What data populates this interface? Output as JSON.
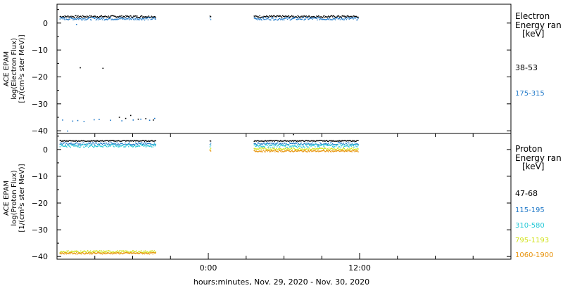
{
  "colors": {
    "black": "#000000",
    "blue": "#1f78c8",
    "cyan": "#24c8d6",
    "yellow": "#d2e21a",
    "orange": "#e8930c"
  },
  "xaxis": {
    "label": "hours:minutes, Nov. 29, 2020 - Nov. 30, 2020",
    "ticks": [
      {
        "hour": 0,
        "label": "0:00"
      },
      {
        "hour": 12,
        "label": "12:00"
      }
    ],
    "range_hours": [
      -12,
      24
    ],
    "minor_ticks_hours": [
      -9,
      -6,
      -3,
      3,
      6,
      9,
      15,
      18,
      21
    ]
  },
  "chart_data": [
    {
      "type": "scatter",
      "ylabel_lines": [
        "ACE EPAM",
        "log(Electron Flux)",
        "[1/(cm²s ster MeV)]"
      ],
      "ylim": [
        -41,
        7
      ],
      "yticks": [
        0,
        -10,
        -20,
        -30,
        -40
      ],
      "legend": {
        "title_lines": [
          "Electron",
          "Energy ran",
          "[keV]"
        ],
        "entries": [
          {
            "label": "38-53",
            "color_key": "black"
          },
          {
            "label": "175-315",
            "color_key": "blue"
          }
        ]
      },
      "series": [
        {
          "color_key": "black",
          "base": 2.6,
          "jitter": 0.35,
          "segments": [
            [
              -11.8,
              -4.2
            ],
            [
              0.1,
              0.2
            ],
            [
              3.6,
              11.9
            ]
          ],
          "outliers": [
            [
              -10.2,
              -16.4
            ],
            [
              -8.4,
              -16.6
            ],
            [
              -7.1,
              -34.8
            ],
            [
              -6.6,
              -35.2
            ],
            [
              -6.2,
              -34.1
            ],
            [
              -5.6,
              -35.5
            ],
            [
              -5.0,
              -35.3
            ],
            [
              -4.4,
              -35.8
            ]
          ]
        },
        {
          "color_key": "blue",
          "base": 1.8,
          "jitter": 0.5,
          "segments": [
            [
              -11.8,
              -4.2
            ],
            [
              0.1,
              0.2
            ],
            [
              3.6,
              11.9
            ]
          ],
          "outliers": [
            [
              -11.6,
              -35.8
            ],
            [
              -11.2,
              -39.9
            ],
            [
              -10.8,
              -36.2
            ],
            [
              -10.4,
              -36.0
            ],
            [
              -9.9,
              -36.3
            ],
            [
              -9.1,
              -35.7
            ],
            [
              -8.7,
              -35.6
            ],
            [
              -7.8,
              -35.9
            ],
            [
              -6.9,
              -36.1
            ],
            [
              -6.0,
              -35.8
            ],
            [
              -5.4,
              -35.5
            ],
            [
              -4.7,
              -35.9
            ],
            [
              -4.3,
              -35.2
            ],
            [
              -10.5,
              -0.3
            ]
          ]
        }
      ]
    },
    {
      "type": "scatter",
      "ylabel_lines": [
        "ACE EPAM",
        "log(Proton Flux)",
        "[1/(cm²s ster MeV)]"
      ],
      "ylim": [
        -41,
        6
      ],
      "yticks": [
        0,
        -10,
        -20,
        -30,
        -40
      ],
      "legend": {
        "title_lines": [
          "Proton",
          "Energy ran",
          "[keV]"
        ],
        "entries": [
          {
            "label": "47-68",
            "color_key": "black"
          },
          {
            "label": "115-195",
            "color_key": "blue"
          },
          {
            "label": "310-580",
            "color_key": "cyan"
          },
          {
            "label": "795-1193",
            "color_key": "yellow"
          },
          {
            "label": "1060-1900",
            "color_key": "orange"
          }
        ]
      },
      "series": [
        {
          "color_key": "black",
          "base": 3.4,
          "jitter": 0.2,
          "segments": [
            [
              -11.8,
              -4.2
            ],
            [
              0.1,
              0.2
            ],
            [
              3.6,
              11.9
            ]
          ],
          "outliers": [
            [
              6.7,
              5.8
            ]
          ]
        },
        {
          "color_key": "blue",
          "base": 2.3,
          "jitter": 0.45,
          "segments": [
            [
              -11.8,
              -4.2
            ],
            [
              0.1,
              0.2
            ],
            [
              3.6,
              11.9
            ]
          ],
          "outliers": []
        },
        {
          "color_key": "cyan",
          "base": 1.6,
          "jitter": 0.6,
          "segments": [
            [
              -11.8,
              -4.2
            ],
            [
              0.1,
              0.2
            ],
            [
              3.6,
              11.9
            ]
          ],
          "outliers": []
        },
        {
          "color_key": "yellow",
          "base": -38.0,
          "jitter": 0.4,
          "segments": [
            [
              -11.8,
              -4.2
            ]
          ],
          "outliers": []
        },
        {
          "color_key": "yellow",
          "base": 0.4,
          "jitter": 0.4,
          "segments": [
            [
              0.1,
              0.2
            ],
            [
              3.6,
              11.9
            ]
          ],
          "outliers": []
        },
        {
          "color_key": "orange",
          "base": -38.6,
          "jitter": 0.3,
          "segments": [
            [
              -11.8,
              -4.2
            ]
          ],
          "outliers": []
        },
        {
          "color_key": "orange",
          "base": -0.4,
          "jitter": 0.3,
          "segments": [
            [
              0.1,
              0.2
            ],
            [
              3.6,
              11.9
            ]
          ],
          "outliers": []
        }
      ]
    }
  ]
}
